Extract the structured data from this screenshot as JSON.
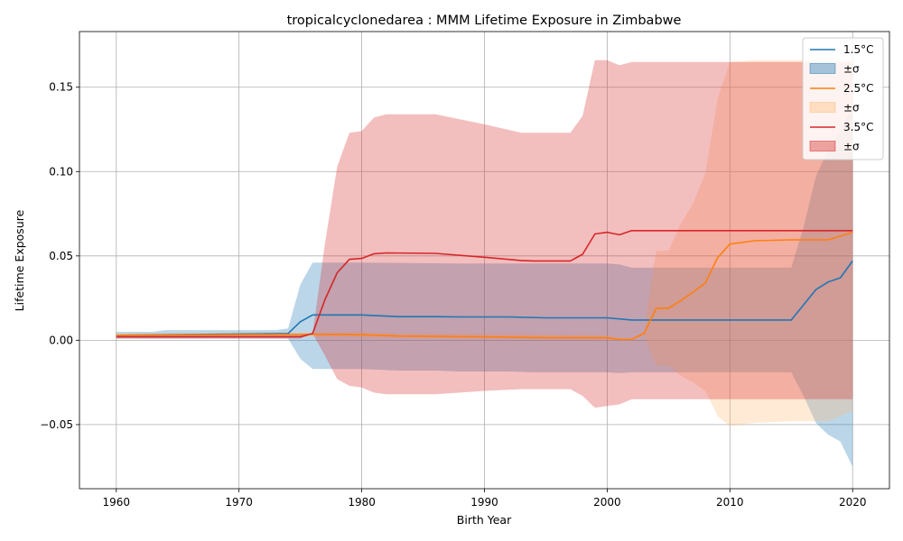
{
  "chart_data": {
    "type": "line",
    "title": "tropicalcyclonedarea : MMM Lifetime Exposure in Zimbabwe",
    "xlabel": "Birth Year",
    "ylabel": "Lifetime Exposure",
    "xlim": [
      1957,
      2023
    ],
    "ylim": [
      -0.088,
      0.183
    ],
    "xticks": [
      1960,
      1970,
      1980,
      1990,
      2000,
      2010,
      2020
    ],
    "yticks": [
      -0.05,
      0.0,
      0.05,
      0.1,
      0.15
    ],
    "ytick_labels": [
      "−0.05",
      "0.00",
      "0.05",
      "0.10",
      "0.15"
    ],
    "grid": true,
    "legend_position": "top-right",
    "legend": [
      "1.5°C",
      "±σ",
      "2.5°C",
      "±σ",
      "3.5°C",
      "±σ"
    ],
    "band_label": "±σ",
    "series": [
      {
        "name": "1.5°C",
        "color": "#1f77b4",
        "band_color": "#1f77b4",
        "points": [
          [
            1960,
            0.003
          ],
          [
            1974,
            0.004
          ],
          [
            1975,
            0.011
          ],
          [
            1976,
            0.015
          ],
          [
            1980,
            0.015
          ],
          [
            1983,
            0.014
          ],
          [
            1986,
            0.014
          ],
          [
            1988,
            0.0138
          ],
          [
            1992,
            0.0138
          ],
          [
            1995,
            0.0133
          ],
          [
            2000,
            0.0133
          ],
          [
            2002,
            0.012
          ],
          [
            2015,
            0.012
          ],
          [
            2016,
            0.021
          ],
          [
            2017,
            0.03
          ],
          [
            2018,
            0.0345
          ],
          [
            2019,
            0.037
          ],
          [
            2020,
            0.047
          ]
        ],
        "upper": [
          [
            1960,
            0.005
          ],
          [
            1963,
            0.005
          ],
          [
            1964,
            0.006
          ],
          [
            1973,
            0.006
          ],
          [
            1974,
            0.007
          ],
          [
            1975,
            0.033
          ],
          [
            1976,
            0.046
          ],
          [
            1980,
            0.046
          ],
          [
            1988,
            0.0455
          ],
          [
            2000,
            0.0455
          ],
          [
            2001,
            0.045
          ],
          [
            2002,
            0.043
          ],
          [
            2015,
            0.043
          ],
          [
            2016,
            0.067
          ],
          [
            2017,
            0.097
          ],
          [
            2018,
            0.113
          ],
          [
            2019,
            0.124
          ],
          [
            2020,
            0.14
          ]
        ],
        "lower": [
          [
            1960,
            0.001
          ],
          [
            1974,
            0.001
          ],
          [
            1975,
            -0.011
          ],
          [
            1976,
            -0.017
          ],
          [
            1980,
            -0.017
          ],
          [
            1983,
            -0.018
          ],
          [
            1986,
            -0.018
          ],
          [
            1988,
            -0.0185
          ],
          [
            1992,
            -0.0185
          ],
          [
            1994,
            -0.019
          ],
          [
            2000,
            -0.019
          ],
          [
            2001,
            -0.0195
          ],
          [
            2002,
            -0.019
          ],
          [
            2015,
            -0.019
          ],
          [
            2016,
            -0.033
          ],
          [
            2017,
            -0.049
          ],
          [
            2018,
            -0.056
          ],
          [
            2019,
            -0.06
          ],
          [
            2020,
            -0.075
          ]
        ]
      },
      {
        "name": "2.5°C",
        "color": "#ff7f0e",
        "band_color": "#ffbb78",
        "points": [
          [
            1960,
            0.003
          ],
          [
            1976,
            0.0035
          ],
          [
            1980,
            0.0033
          ],
          [
            1983,
            0.0025
          ],
          [
            1990,
            0.002
          ],
          [
            1995,
            0.0015
          ],
          [
            2000,
            0.0015
          ],
          [
            2001,
            0.0005
          ],
          [
            2002,
            0.0005
          ],
          [
            2003,
            0.004
          ],
          [
            2004,
            0.019
          ],
          [
            2005,
            0.019
          ],
          [
            2006,
            0.0235
          ],
          [
            2007,
            0.0285
          ],
          [
            2008,
            0.034
          ],
          [
            2009,
            0.049
          ],
          [
            2010,
            0.057
          ],
          [
            2012,
            0.059
          ],
          [
            2015,
            0.0595
          ],
          [
            2018,
            0.0595
          ],
          [
            2020,
            0.064
          ]
        ],
        "upper": [
          [
            1960,
            0.004
          ],
          [
            1976,
            0.005
          ],
          [
            1980,
            0.005
          ],
          [
            1983,
            0.004
          ],
          [
            1990,
            0.004
          ],
          [
            2000,
            0.003
          ],
          [
            2001,
            0.001
          ],
          [
            2002,
            0.001
          ],
          [
            2003,
            0.005
          ],
          [
            2004,
            0.053
          ],
          [
            2005,
            0.053
          ],
          [
            2006,
            0.069
          ],
          [
            2007,
            0.081
          ],
          [
            2008,
            0.099
          ],
          [
            2009,
            0.143
          ],
          [
            2010,
            0.165
          ],
          [
            2012,
            0.166
          ],
          [
            2020,
            0.166
          ]
        ],
        "lower": [
          [
            1960,
            0.002
          ],
          [
            1976,
            0.002
          ],
          [
            1980,
            0.0015
          ],
          [
            1990,
            0.001
          ],
          [
            2000,
            0.0
          ],
          [
            2001,
            0.0
          ],
          [
            2002,
            0.0
          ],
          [
            2003,
            0.003
          ],
          [
            2004,
            -0.015
          ],
          [
            2005,
            -0.015
          ],
          [
            2006,
            -0.021
          ],
          [
            2007,
            -0.025
          ],
          [
            2008,
            -0.03
          ],
          [
            2009,
            -0.045
          ],
          [
            2010,
            -0.051
          ],
          [
            2012,
            -0.049
          ],
          [
            2015,
            -0.048
          ],
          [
            2018,
            -0.048
          ],
          [
            2020,
            -0.042
          ]
        ]
      },
      {
        "name": "3.5°C",
        "color": "#d62728",
        "band_color": "#d62728",
        "points": [
          [
            1960,
            0.002
          ],
          [
            1974,
            0.002
          ],
          [
            1975,
            0.002
          ],
          [
            1976,
            0.004
          ],
          [
            1977,
            0.024
          ],
          [
            1978,
            0.04
          ],
          [
            1979,
            0.048
          ],
          [
            1980,
            0.0485
          ],
          [
            1981,
            0.0513
          ],
          [
            1982,
            0.0518
          ],
          [
            1986,
            0.0515
          ],
          [
            1990,
            0.0492
          ],
          [
            1993,
            0.0473
          ],
          [
            1994,
            0.047
          ],
          [
            1997,
            0.047
          ],
          [
            1998,
            0.051
          ],
          [
            1999,
            0.063
          ],
          [
            2000,
            0.064
          ],
          [
            2001,
            0.0625
          ],
          [
            2002,
            0.065
          ],
          [
            2020,
            0.065
          ]
        ],
        "upper": [
          [
            1960,
            0.003
          ],
          [
            1975,
            0.003
          ],
          [
            1976,
            0.004
          ],
          [
            1977,
            0.057
          ],
          [
            1978,
            0.103
          ],
          [
            1979,
            0.123
          ],
          [
            1980,
            0.124
          ],
          [
            1981,
            0.132
          ],
          [
            1982,
            0.134
          ],
          [
            1986,
            0.134
          ],
          [
            1990,
            0.128
          ],
          [
            1993,
            0.123
          ],
          [
            1994,
            0.123
          ],
          [
            1997,
            0.123
          ],
          [
            1998,
            0.133
          ],
          [
            1999,
            0.166
          ],
          [
            2000,
            0.166
          ],
          [
            2001,
            0.163
          ],
          [
            2002,
            0.165
          ],
          [
            2020,
            0.165
          ]
        ],
        "lower": [
          [
            1960,
            0.001
          ],
          [
            1975,
            0.001
          ],
          [
            1976,
            0.004
          ],
          [
            1977,
            -0.009
          ],
          [
            1978,
            -0.023
          ],
          [
            1979,
            -0.027
          ],
          [
            1980,
            -0.028
          ],
          [
            1981,
            -0.031
          ],
          [
            1982,
            -0.032
          ],
          [
            1986,
            -0.032
          ],
          [
            1990,
            -0.03
          ],
          [
            1993,
            -0.029
          ],
          [
            1997,
            -0.029
          ],
          [
            1998,
            -0.033
          ],
          [
            1999,
            -0.04
          ],
          [
            2000,
            -0.039
          ],
          [
            2001,
            -0.038
          ],
          [
            2002,
            -0.035
          ],
          [
            2020,
            -0.035
          ]
        ]
      }
    ]
  }
}
